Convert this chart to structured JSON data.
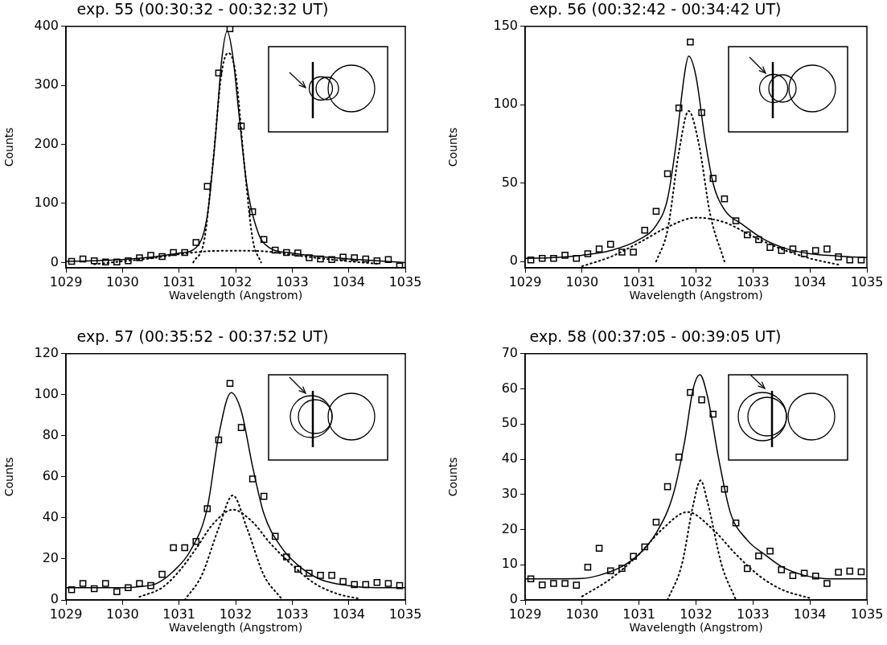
{
  "chart_data": [
    {
      "type": "scatter",
      "title": "exp. 55 (00:30:32 - 00:32:32 UT)",
      "xlabel": "Wavelength (Angstrom)",
      "ylabel": "Counts",
      "xlim": [
        1029,
        1035
      ],
      "xticks": [
        1029,
        1030,
        1031,
        1032,
        1033,
        1034,
        1035
      ],
      "ylim": [
        -9,
        400
      ],
      "yticks": [
        0,
        100,
        200,
        300,
        400
      ],
      "series": [
        {
          "marker": "square",
          "color": "#000000",
          "x": [
            1029.1,
            1029.3,
            1029.5,
            1029.7,
            1029.9,
            1030.1,
            1030.3,
            1030.5,
            1030.7,
            1030.9,
            1031.1,
            1031.3,
            1031.5,
            1031.7,
            1031.9,
            1032.1,
            1032.3,
            1032.5,
            1032.7,
            1032.9,
            1033.1,
            1033.3,
            1033.5,
            1033.7,
            1033.9,
            1034.1,
            1034.3,
            1034.5,
            1034.7,
            1034.9
          ],
          "values": [
            2,
            6,
            3,
            1,
            1,
            3,
            8,
            12,
            10,
            17,
            17,
            34,
            129,
            321,
            396,
            231,
            86,
            39,
            21,
            17,
            16,
            8,
            6,
            5,
            9,
            8,
            6,
            3,
            5,
            -6
          ]
        },
        {
          "type": "line",
          "marker": "none",
          "line_style": "solid",
          "color": "#000000",
          "x": [
            1029,
            1029.5,
            1030,
            1030.5,
            1031,
            1031.3,
            1031.5,
            1031.65,
            1031.75,
            1031.85,
            1031.95,
            1032.05,
            1032.2,
            1032.4,
            1032.6,
            1033,
            1033.5,
            1034,
            1034.5,
            1035
          ],
          "values": [
            2,
            3,
            5,
            9,
            16,
            25,
            80,
            220,
            340,
            392,
            350,
            260,
            130,
            50,
            25,
            16,
            10,
            6,
            3,
            0
          ]
        },
        {
          "type": "line",
          "marker": "none",
          "line_style": "dotted",
          "color": "#000000",
          "x": [
            1031.25,
            1031.45,
            1031.6,
            1031.75,
            1031.87,
            1032,
            1032.15,
            1032.3,
            1032.45
          ],
          "values": [
            0,
            40,
            170,
            320,
            355,
            320,
            170,
            40,
            0
          ]
        },
        {
          "type": "line",
          "marker": "none",
          "line_style": "dotted",
          "color": "#000000",
          "x": [
            1029.5,
            1030,
            1030.5,
            1031,
            1031.5,
            1032,
            1032.5,
            1033,
            1033.5,
            1034,
            1034.5
          ],
          "values": [
            -3,
            2,
            7,
            14,
            19,
            20,
            19,
            13,
            7,
            2,
            -2
          ]
        }
      ]
    },
    {
      "type": "scatter",
      "title": "exp. 56 (00:32:42 - 00:34:42 UT)",
      "xlabel": "Wavelength (Angstrom)",
      "ylabel": "Counts",
      "xlim": [
        1029,
        1035
      ],
      "xticks": [
        1029,
        1030,
        1031,
        1032,
        1033,
        1034,
        1035
      ],
      "ylim": [
        -4,
        150
      ],
      "yticks": [
        0,
        50,
        100,
        150
      ],
      "series": [
        {
          "marker": "square",
          "color": "#000000",
          "x": [
            1029.1,
            1029.3,
            1029.5,
            1029.7,
            1029.9,
            1030.1,
            1030.3,
            1030.5,
            1030.7,
            1030.9,
            1031.1,
            1031.3,
            1031.5,
            1031.7,
            1031.9,
            1032.1,
            1032.3,
            1032.5,
            1032.7,
            1032.9,
            1033.1,
            1033.3,
            1033.5,
            1033.7,
            1033.9,
            1034.1,
            1034.3,
            1034.5,
            1034.7,
            1034.9
          ],
          "values": [
            1,
            2,
            2,
            4,
            2,
            5,
            8,
            11,
            6,
            6,
            20,
            32,
            56,
            98,
            140,
            95,
            53,
            40,
            26,
            17,
            14,
            9,
            7,
            8,
            5,
            7,
            8,
            3,
            1,
            1
          ]
        },
        {
          "type": "line",
          "marker": "none",
          "line_style": "solid",
          "color": "#000000",
          "x": [
            1029,
            1029.5,
            1030,
            1030.5,
            1031,
            1031.3,
            1031.5,
            1031.65,
            1031.8,
            1031.87,
            1032,
            1032.15,
            1032.3,
            1032.5,
            1032.8,
            1033.2,
            1033.6,
            1034,
            1034.5,
            1035
          ],
          "values": [
            2,
            2.5,
            4,
            7,
            14,
            23,
            40,
            75,
            120,
            131,
            118,
            80,
            50,
            33,
            24,
            14,
            8,
            5,
            3.5,
            2.5
          ]
        },
        {
          "type": "line",
          "marker": "none",
          "line_style": "dotted",
          "color": "#000000",
          "x": [
            1031.3,
            1031.5,
            1031.7,
            1031.87,
            1032.05,
            1032.25,
            1032.5
          ],
          "values": [
            0,
            20,
            70,
            96,
            75,
            30,
            0
          ]
        },
        {
          "type": "line",
          "marker": "none",
          "line_style": "dotted",
          "color": "#000000",
          "x": [
            1030,
            1030.5,
            1031,
            1031.5,
            1032,
            1032.5,
            1033,
            1033.5,
            1034,
            1034.5
          ],
          "values": [
            -3,
            3,
            12,
            22,
            28,
            25,
            16,
            8,
            2,
            -2
          ]
        }
      ]
    },
    {
      "type": "scatter",
      "title": "exp. 57 (00:35:52 - 00:37:52 UT)",
      "xlabel": "Wavelength (Angstrom)",
      "ylabel": "Counts",
      "xlim": [
        1029,
        1035
      ],
      "xticks": [
        1029,
        1030,
        1031,
        1032,
        1033,
        1034,
        1035
      ],
      "ylim": [
        0,
        120
      ],
      "yticks": [
        0,
        20,
        40,
        60,
        80,
        100,
        120
      ],
      "series": [
        {
          "marker": "square",
          "color": "#000000",
          "x": [
            1029.1,
            1029.3,
            1029.5,
            1029.7,
            1029.9,
            1030.1,
            1030.3,
            1030.5,
            1030.7,
            1030.9,
            1031.1,
            1031.3,
            1031.5,
            1031.7,
            1031.9,
            1032.1,
            1032.3,
            1032.5,
            1032.7,
            1032.9,
            1033.1,
            1033.3,
            1033.5,
            1033.7,
            1033.9,
            1034.1,
            1034.3,
            1034.5,
            1034.7,
            1034.9
          ],
          "values": [
            5,
            8,
            5.5,
            8,
            4,
            6,
            8,
            7,
            12.5,
            25.5,
            25.5,
            28.5,
            44.5,
            78,
            105.5,
            84,
            59,
            50.5,
            31,
            21,
            15,
            13,
            12,
            12,
            9,
            7.5,
            7.5,
            8.5,
            8,
            7
          ]
        },
        {
          "type": "line",
          "marker": "none",
          "line_style": "solid",
          "color": "#000000",
          "x": [
            1029,
            1029.5,
            1030,
            1030.3,
            1030.6,
            1030.9,
            1031.2,
            1031.5,
            1031.7,
            1031.92,
            1032.1,
            1032.3,
            1032.5,
            1032.8,
            1033.1,
            1033.5,
            1034,
            1034.5,
            1035
          ],
          "values": [
            6,
            6,
            6,
            6.5,
            8,
            14,
            24,
            45,
            80,
            101,
            92,
            65,
            42,
            26,
            17,
            10,
            7,
            6,
            6
          ]
        },
        {
          "type": "line",
          "marker": "none",
          "line_style": "dotted",
          "color": "#000000",
          "x": [
            1031.1,
            1031.4,
            1031.7,
            1031.95,
            1032.2,
            1032.5,
            1032.8
          ],
          "values": [
            0,
            12,
            35,
            51,
            35,
            12,
            1
          ]
        },
        {
          "type": "line",
          "marker": "none",
          "line_style": "dotted",
          "color": "#000000",
          "x": [
            1030.3,
            1030.7,
            1031,
            1031.3,
            1031.6,
            1031.95,
            1032.3,
            1032.6,
            1033,
            1033.4,
            1033.8,
            1034.2
          ],
          "values": [
            1.5,
            6,
            14,
            25,
            37,
            44,
            38,
            28,
            17,
            8,
            3,
            0.5
          ]
        }
      ]
    },
    {
      "type": "scatter",
      "title": "exp. 58 (00:37:05 - 00:39:05 UT)",
      "xlabel": "Wavelength (Angstrom)",
      "ylabel": "Counts",
      "xlim": [
        1029,
        1035
      ],
      "xticks": [
        1029,
        1030,
        1031,
        1032,
        1033,
        1034,
        1035
      ],
      "ylim": [
        0,
        70
      ],
      "yticks": [
        0,
        10,
        20,
        30,
        40,
        50,
        60,
        70
      ],
      "series": [
        {
          "marker": "square",
          "color": "#000000",
          "x": [
            1029.1,
            1029.3,
            1029.5,
            1029.7,
            1029.9,
            1030.1,
            1030.3,
            1030.5,
            1030.7,
            1030.9,
            1031.1,
            1031.3,
            1031.5,
            1031.7,
            1031.9,
            1032.1,
            1032.3,
            1032.5,
            1032.7,
            1032.9,
            1033.1,
            1033.3,
            1033.5,
            1033.7,
            1033.9,
            1034.1,
            1034.3,
            1034.5,
            1034.7,
            1034.9
          ],
          "values": [
            6,
            4.3,
            4.7,
            4.7,
            4.2,
            9.3,
            14.7,
            8.3,
            9,
            12.4,
            15.1,
            22.1,
            32.2,
            40.6,
            59,
            56.9,
            52.8,
            31.5,
            21.9,
            8.9,
            12.5,
            13.9,
            8.6,
            6.9,
            7.6,
            6.8,
            4.7,
            7.9,
            8.2,
            8
          ]
        },
        {
          "type": "line",
          "marker": "none",
          "line_style": "solid",
          "color": "#000000",
          "x": [
            1029,
            1029.5,
            1030,
            1030.3,
            1030.7,
            1031,
            1031.3,
            1031.6,
            1031.8,
            1031.95,
            1032.07,
            1032.2,
            1032.4,
            1032.6,
            1032.9,
            1033.2,
            1033.5,
            1033.9,
            1034.4,
            1035
          ],
          "values": [
            6,
            6,
            6.1,
            7,
            9.5,
            13,
            19,
            30,
            45,
            60,
            64,
            58,
            40,
            25,
            17,
            13,
            9.5,
            7,
            6,
            6
          ]
        },
        {
          "type": "line",
          "marker": "none",
          "line_style": "dotted",
          "color": "#000000",
          "x": [
            1031.5,
            1031.75,
            1031.95,
            1032.08,
            1032.2,
            1032.45,
            1032.7
          ],
          "values": [
            0,
            10,
            27,
            34,
            28,
            10,
            0
          ]
        },
        {
          "type": "line",
          "marker": "none",
          "line_style": "dotted",
          "color": "#000000",
          "x": [
            1030,
            1030.5,
            1031,
            1031.4,
            1031.85,
            1032.3,
            1032.7,
            1033.1,
            1033.5,
            1034
          ],
          "values": [
            1,
            6,
            13,
            20,
            25,
            20,
            13,
            7,
            3,
            0.5
          ]
        }
      ]
    }
  ]
}
